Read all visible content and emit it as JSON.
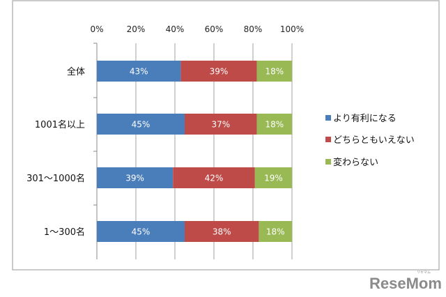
{
  "chart_data": {
    "type": "bar",
    "orientation": "horizontal",
    "stacked": "percent",
    "title": "",
    "xlabel": "",
    "ylabel": "",
    "xlim": [
      0,
      100
    ],
    "x_ticks": [
      "0%",
      "20%",
      "40%",
      "60%",
      "80%",
      "100%"
    ],
    "categories": [
      "全体",
      "1001名以上",
      "301～1000名",
      "1～300名"
    ],
    "series": [
      {
        "name": "より有利になる",
        "color": "#4a7ebb",
        "values": [
          43,
          45,
          39,
          45
        ],
        "labels": [
          "43%",
          "45%",
          "39%",
          "45%"
        ]
      },
      {
        "name": "どちらともいえない",
        "color": "#be4b48",
        "values": [
          39,
          37,
          42,
          38
        ],
        "labels": [
          "39%",
          "37%",
          "42%",
          "38%"
        ]
      },
      {
        "name": "変わらない",
        "color": "#98b954",
        "values": [
          18,
          18,
          19,
          18
        ],
        "labels": [
          "18%",
          "18%",
          "19%",
          "18%"
        ]
      }
    ],
    "grid": true,
    "legend_position": "right"
  },
  "watermark": {
    "text": "ReseMom",
    "subtext": "リセマム"
  }
}
